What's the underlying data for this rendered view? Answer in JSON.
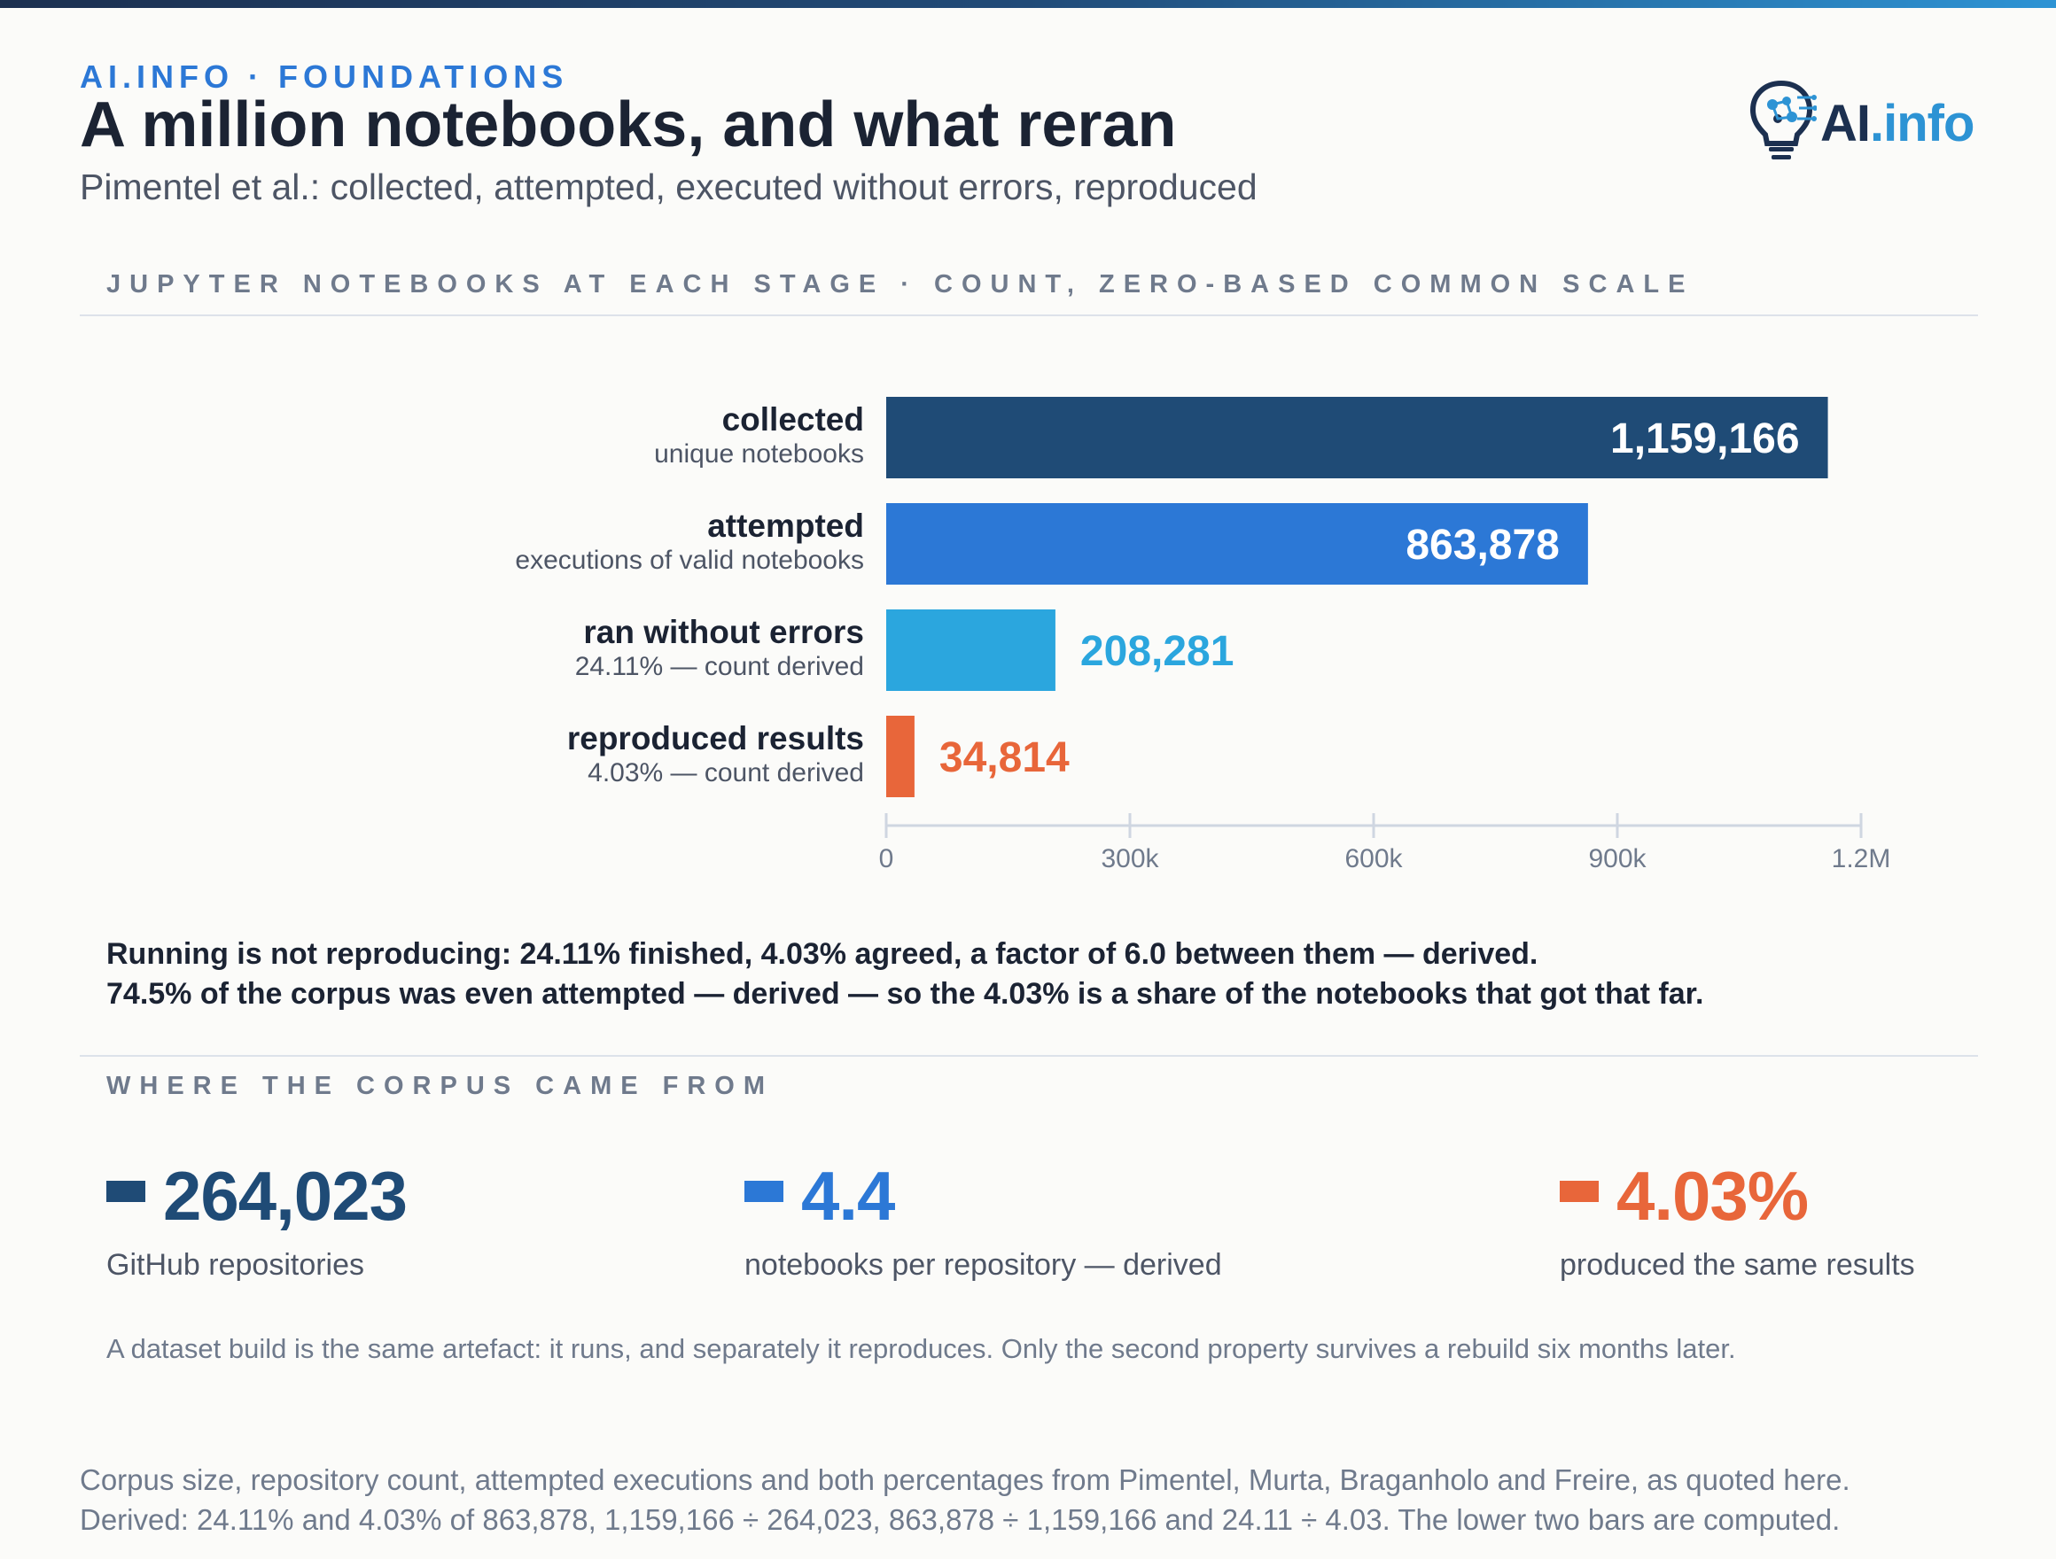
{
  "header": {
    "kicker": "AI.INFO · FOUNDATIONS",
    "title": "A million notebooks, and what reran",
    "subtitle": "Pimentel et al.: collected, attempted, executed without errors, reproduced",
    "logo_text": "AI",
    "logo_accent": ".info"
  },
  "section_chart": "JUPYTER NOTEBOOKS AT EACH STAGE · COUNT, ZERO-BASED COMMON SCALE",
  "chart_data": {
    "type": "bar",
    "orientation": "horizontal",
    "categories": [
      "collected",
      "attempted",
      "ran without errors",
      "reproduced results"
    ],
    "category_notes": [
      "unique notebooks",
      "executions of valid notebooks",
      "24.11% — count derived",
      "4.03% — count derived"
    ],
    "values": [
      1159166,
      863878,
      208281,
      34814
    ],
    "value_labels": [
      "1,159,166",
      "863,878",
      "208,281",
      "34,814"
    ],
    "colors": [
      "#1f4b76",
      "#2c78d6",
      "#2ba6de",
      "#e8663a"
    ],
    "xlim": [
      0,
      1200000
    ],
    "ticks": [
      0,
      300000,
      600000,
      900000,
      1200000
    ],
    "tick_labels": [
      "0",
      "300k",
      "600k",
      "900k",
      "1.2M"
    ],
    "grid": false
  },
  "takeaway": {
    "line1": "Running is not reproducing: 24.11% finished, 4.03% agreed, a factor of 6.0 between them — derived.",
    "line2": "74.5% of the corpus was even attempted — derived — so the 4.03% is a share of the notebooks that got that far."
  },
  "section_corpus": "WHERE THE CORPUS CAME FROM",
  "stats": [
    {
      "value": "264,023",
      "label": "GitHub repositories",
      "color": "#1f4b76"
    },
    {
      "value": "4.4",
      "label": "notebooks per repository — derived",
      "color": "#2c78d6"
    },
    {
      "value": "4.03%",
      "label": "produced the same results",
      "color": "#e8663a"
    }
  ],
  "note": "A dataset build is the same artefact: it runs, and separately it reproduces. Only the second property survives a rebuild six months later.",
  "footer": {
    "line1": "Corpus size, repository count, attempted executions and both percentages from Pimentel, Murta, Braganholo and Freire, as quoted here.",
    "line2": "Derived: 24.11% and 4.03% of 863,878, 1,159,166 ÷ 264,023, 863,878 ÷ 1,159,166 and 24.11 ÷ 4.03. The lower two bars are computed."
  }
}
